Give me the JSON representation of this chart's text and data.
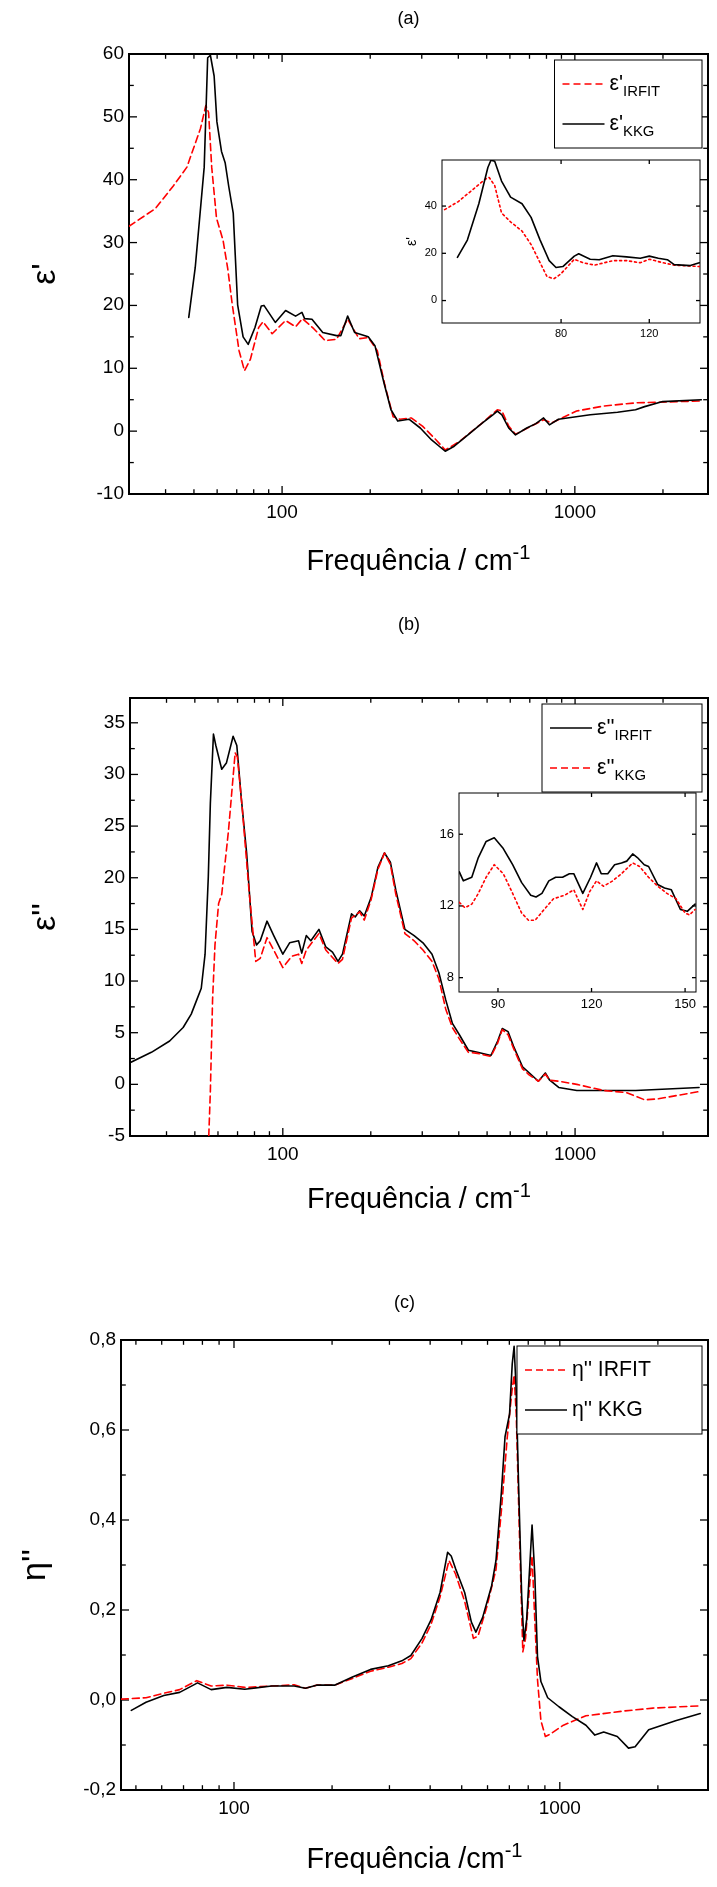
{
  "chart_data": [
    {
      "type": "line",
      "title": "(a)",
      "xlabel": "Frequência / cm$^{-1}$",
      "ylabel": "ε'",
      "log": "x",
      "legend": "top right",
      "xlim": [
        30,
        2850
      ],
      "ylim": [
        -10,
        60
      ],
      "xticks": [
        {
          "value": 30,
          "label": null
        },
        {
          "value": 40,
          "label": null
        },
        {
          "value": 50,
          "label": null
        },
        {
          "value": 60,
          "label": null
        },
        {
          "value": 70,
          "label": null
        },
        {
          "value": 80,
          "label": null
        },
        {
          "value": 90,
          "label": null
        },
        100,
        {
          "value": 200,
          "label": null
        },
        {
          "value": 300,
          "label": null
        },
        {
          "value": 400,
          "label": null
        },
        {
          "value": 500,
          "label": null
        },
        {
          "value": 600,
          "label": null
        },
        {
          "value": 700,
          "label": null
        },
        {
          "value": 800,
          "label": null
        },
        {
          "value": 900,
          "label": null
        },
        1000,
        {
          "value": 2000,
          "label": null
        }
      ],
      "yticks": [
        -10,
        {
          "value": -5,
          "label": null
        },
        0,
        {
          "value": 5,
          "label": null
        },
        10,
        {
          "value": 15,
          "label": null
        },
        20,
        {
          "value": 25,
          "label": null
        },
        30,
        {
          "value": 35,
          "label": null
        },
        40,
        {
          "value": 45,
          "label": null
        },
        50,
        {
          "value": 55,
          "label": null
        },
        60
      ],
      "series": [
        {
          "name": "ε'$_{IRFIT}$",
          "color": "#ff0000",
          "line_style": "dashed",
          "x": [
            30,
            36.9,
            42.5,
            47.3,
            52.6,
            54.9,
            56.1,
            57.5,
            59.7,
            62.9,
            65.2,
            67.6,
            71.3,
            74.4,
            77.9,
            83.2,
            86.1,
            92.5,
            102.8,
            111.2,
            117.4,
            128.3,
            140.3,
            153.4,
            167.5,
            183.2,
            196.9,
            211.5,
            224,
            239.5,
            252.6,
            276.2,
            301.7,
            336,
            360.8,
            401.9,
            480,
            543.5,
            563.5,
            594.3,
            627,
            782,
            833,
            1014,
            1256,
            1612,
            2704
          ],
          "values": [
            32.6,
            35.4,
            39,
            42,
            48.1,
            51.8,
            50.7,
            42,
            33.9,
            30.3,
            25.9,
            20.1,
            12.8,
            9.6,
            11.4,
            16.5,
            17.4,
            15.5,
            17.6,
            16.6,
            17.9,
            16.3,
            14.4,
            14.6,
            17.8,
            14.7,
            14.9,
            12.8,
            7.5,
            2.3,
            1.9,
            2.1,
            0.8,
            -1.4,
            -3.0,
            -1.7,
            1.2,
            3.4,
            3.2,
            0.8,
            -0.5,
            1.8,
            1.3,
            3.2,
            4.0,
            4.5,
            4.8
          ]
        },
        {
          "name": "ε'$_{KKG}$",
          "color": "#000000",
          "line_style": "solid",
          "x": [
            48,
            50.5,
            54.2,
            55.7,
            56.9,
            58.6,
            59.9,
            62.1,
            63.9,
            65.7,
            68.1,
            70.5,
            73.6,
            76.6,
            80.8,
            84.9,
            86.7,
            94.8,
            102.8,
            111.2,
            116.9,
            119.4,
            126.5,
            137.7,
            153.4,
            158.8,
            167.5,
            176.9,
            196.9,
            207.6,
            222.8,
            235.5,
            248.4,
            271.2,
            296.5,
            324.1,
            360.8,
            387.3,
            431.5,
            480,
            524.8,
            543.5,
            563.5,
            594.3,
            627,
            685,
            735.9,
            782,
            818.8,
            879,
            1129,
            1399,
            1612,
            1731,
            1995,
            2704
          ],
          "values": [
            18.1,
            26,
            42,
            59.4,
            59.8,
            56.5,
            49.2,
            44.5,
            42.7,
            39,
            34.7,
            20.1,
            15,
            13.8,
            16.5,
            19.9,
            20,
            17.3,
            19.2,
            18.3,
            18.9,
            17.9,
            17.8,
            15.7,
            15.2,
            15.2,
            18.3,
            15.7,
            15,
            13.6,
            7.7,
            3.4,
            1.6,
            1.9,
            0.5,
            -1.4,
            -3.2,
            -2.4,
            -0.6,
            1.2,
            2.6,
            3.2,
            2.6,
            0.5,
            -0.6,
            0.5,
            1.2,
            2.1,
            1.0,
            1.9,
            2.6,
            3.0,
            3.4,
            3.9,
            4.7,
            5.0
          ]
        }
      ]
    },
    {
      "type": "line",
      "ylabel": "ε'",
      "xlim": [
        26,
        143
      ],
      "ylim": [
        -9.5,
        59.5
      ],
      "xticks": [
        80,
        120
      ],
      "yticks": [
        0,
        20,
        40
      ],
      "series": [
        {
          "color": "#ff0000",
          "line_style": "dotted",
          "x": [
            27.2,
            33.4,
            39.6,
            45.8,
            47.4,
            49.9,
            53,
            57.1,
            62.3,
            66.4,
            70.5,
            73.6,
            76.7,
            79.8,
            86,
            90,
            95.3,
            103.5,
            109.7,
            115.9,
            120,
            126.2,
            131.3,
            142.7
          ],
          "values": [
            38.5,
            41.9,
            46.7,
            51.5,
            52.1,
            48.7,
            37.1,
            33.3,
            29.4,
            23.7,
            16,
            10.2,
            9.2,
            11.2,
            17.5,
            16,
            15,
            16.9,
            16.9,
            16,
            17.5,
            16,
            15,
            14.4
          ]
        },
        {
          "color": "#000000",
          "line_style": "solid",
          "x": [
            33,
            37.5,
            42.7,
            46.8,
            48.2,
            49.9,
            53,
            57.1,
            62.3,
            66.4,
            70.5,
            74.6,
            77.7,
            80.8,
            86,
            88,
            93.2,
            97.3,
            103.5,
            109.7,
            115.9,
            120,
            124.1,
            128.2,
            131.3,
            138.6,
            142.7
          ],
          "values": [
            18.3,
            25.6,
            41,
            56.3,
            59.4,
            59,
            50.6,
            43.8,
            41,
            35.2,
            25.6,
            16.9,
            14,
            14.4,
            18.8,
            19.8,
            17.5,
            17.3,
            19,
            18.5,
            17.9,
            18.8,
            17.9,
            17.3,
            15.2,
            14.8,
            16
          ]
        }
      ]
    },
    {
      "type": "line",
      "title": "(b)",
      "xlabel": "Frequência / cm$^{-1}$",
      "ylabel": "ε''",
      "log": "x",
      "legend": "top right",
      "xlim": [
        30,
        2850
      ],
      "ylim": [
        -5,
        37.4
      ],
      "xticks": [
        {
          "value": 30,
          "label": null
        },
        {
          "value": 40,
          "label": null
        },
        {
          "value": 50,
          "label": null
        },
        {
          "value": 60,
          "label": null
        },
        {
          "value": 70,
          "label": null
        },
        {
          "value": 80,
          "label": null
        },
        {
          "value": 90,
          "label": null
        },
        100,
        {
          "value": 200,
          "label": null
        },
        {
          "value": 300,
          "label": null
        },
        {
          "value": 400,
          "label": null
        },
        {
          "value": 500,
          "label": null
        },
        {
          "value": 600,
          "label": null
        },
        {
          "value": 700,
          "label": null
        },
        {
          "value": 800,
          "label": null
        },
        {
          "value": 900,
          "label": null
        },
        1000,
        {
          "value": 2000,
          "label": null
        }
      ],
      "yticks": [
        -5,
        {
          "value": -2.5,
          "label": null
        },
        0,
        {
          "value": 2.5,
          "label": null
        },
        5,
        {
          "value": 7.5,
          "label": null
        },
        10,
        {
          "value": 12.5,
          "label": null
        },
        15,
        {
          "value": 17.5,
          "label": null
        },
        20,
        {
          "value": 22.5,
          "label": null
        },
        25,
        {
          "value": 27.5,
          "label": null
        },
        30,
        {
          "value": 32.5,
          "label": null
        },
        35
      ],
      "series": [
        {
          "name": "ε''$_{IRFIT}$",
          "color": "#000000",
          "line_style": "solid",
          "x": [
            30,
            35.5,
            41,
            45.6,
            48.6,
            50.8,
            52.6,
            54.2,
            55.6,
            56.5,
            57.9,
            59,
            61.8,
            64.1,
            67.6,
            69.6,
            72.1,
            75.2,
            78.5,
            81.3,
            83.7,
            88.3,
            93.1,
            100,
            105.5,
            113.2,
            116.1,
            120.3,
            124.7,
            132.9,
            140.3,
            147.9,
            154.5,
            160,
            171.8,
            176.9,
            183.2,
            190,
            200.6,
            211.5,
            222.8,
            233.4,
            243.6,
            261.7,
            281.4,
            301.7,
            324,
            342,
            360.8,
            380.4,
            401.9,
            431.5,
            463.5,
            515.5,
            543.5,
            563.5,
            590,
            615.5,
            661,
            698,
            749,
            791,
            819,
            879,
            1014,
            1612,
            2656
          ],
          "values": [
            2.1,
            3.1,
            4.2,
            5.5,
            6.8,
            8.2,
            9.3,
            12.6,
            20.1,
            27.2,
            33.9,
            32.8,
            30.5,
            31.1,
            33.7,
            32.8,
            27.7,
            22.4,
            14.8,
            13.5,
            13.9,
            15.8,
            14.4,
            12.6,
            13.7,
            13.9,
            12.7,
            14.4,
            13.9,
            15,
            13.3,
            12.8,
            11.9,
            12.6,
            16.5,
            16.2,
            16.8,
            16.3,
            18.1,
            21.0,
            22.4,
            21.5,
            18.8,
            15.0,
            14.4,
            13.7,
            12.6,
            10.8,
            8.2,
            5.9,
            4.8,
            3.3,
            3.1,
            2.8,
            4.2,
            5.4,
            5.1,
            3.7,
            1.7,
            1.1,
            0.3,
            1.1,
            0.4,
            -0.3,
            -0.6,
            -0.6,
            -0.3
          ]
        },
        {
          "name": "ε''$_{KKG}$",
          "color": "#ff0000",
          "line_style": "dashed",
          "x": [
            55.8,
            56.5,
            57.5,
            58.6,
            60.3,
            61.8,
            65.2,
            68.7,
            69.9,
            72.6,
            76.6,
            80.8,
            83.7,
            88.3,
            93.1,
            100,
            107.4,
            113.2,
            116.1,
            120.3,
            132.9,
            140.3,
            154.5,
            160,
            171.8,
            183.2,
            190,
            200.6,
            211.5,
            222.8,
            233.4,
            243.6,
            261.7,
            281.4,
            301.7,
            324,
            342,
            360.8,
            380.4,
            401.9,
            431.5,
            463.5,
            515.5,
            543.5,
            563.5,
            590,
            615.5,
            661,
            698,
            749,
            791,
            819,
            879,
            1014,
            1256,
            1500,
            1731,
            1928,
            2656
          ],
          "values": [
            -5,
            -0.7,
            8.2,
            13.5,
            17.5,
            18.4,
            24.6,
            32.1,
            31.7,
            26.8,
            18.8,
            11.9,
            12.2,
            14.2,
            13.0,
            11.3,
            12.4,
            12.6,
            11.7,
            13.0,
            14.6,
            13.0,
            11.7,
            12.1,
            16.1,
            16.7,
            15.9,
            17.9,
            20.8,
            22.4,
            21.3,
            18.4,
            14.6,
            13.9,
            13.0,
            11.9,
            10.2,
            7.3,
            5.5,
            4.4,
            3.1,
            3.0,
            2.7,
            4.0,
            5.3,
            4.8,
            3.5,
            1.5,
            0.9,
            0.3,
            1.0,
            0.4,
            0.3,
            0.0,
            -0.6,
            -0.8,
            -1.5,
            -1.4,
            -0.7
          ]
        }
      ]
    },
    {
      "type": "line",
      "xlim": [
        77.5,
        153.5
      ],
      "ylim": [
        7.2,
        18.3
      ],
      "xticks": [
        90,
        120,
        150
      ],
      "yticks": [
        8,
        12,
        16
      ],
      "series": [
        {
          "color": "#000000",
          "line_style": "solid",
          "x": [
            77.6,
            78.9,
            81.6,
            83.7,
            86.2,
            88.8,
            91.7,
            94.7,
            97.6,
            100.5,
            102.2,
            104.1,
            106.3,
            108.5,
            110.7,
            112.9,
            114.3,
            117.2,
            119.7,
            121.6,
            123.1,
            125.2,
            127.4,
            129.6,
            131.3,
            133.2,
            134.7,
            136.9,
            138.3,
            141.2,
            143.4,
            145.6,
            148.5,
            150.7,
            153.2
          ],
          "values": [
            13.9,
            13.4,
            13.6,
            14.7,
            15.6,
            15.8,
            15.2,
            14.3,
            13.3,
            12.6,
            12.5,
            12.7,
            13.4,
            13.6,
            13.6,
            13.8,
            13.8,
            12.7,
            13.6,
            14.4,
            13.8,
            13.8,
            14.3,
            14.4,
            14.5,
            14.9,
            14.7,
            14.3,
            14.2,
            13.2,
            13.0,
            12.9,
            11.8,
            11.7,
            12.1
          ]
        },
        {
          "color": "#ff0000",
          "line_style": "dotted",
          "x": [
            77.6,
            79.4,
            81.6,
            83.7,
            86.2,
            88.8,
            91.7,
            94.7,
            97.6,
            99.8,
            101.9,
            104.8,
            107.8,
            111.4,
            114.3,
            117.2,
            119.4,
            121.6,
            123.8,
            126.8,
            129.6,
            133.2,
            135.4,
            138.3,
            141.2,
            144.2,
            147.1,
            150,
            151.4,
            153.2
          ],
          "values": [
            12.2,
            11.9,
            12.1,
            12.7,
            13.6,
            14.3,
            13.8,
            12.7,
            11.6,
            11.2,
            11.2,
            11.8,
            12.4,
            12.6,
            12.9,
            11.8,
            12.8,
            13.4,
            13.1,
            13.4,
            13.8,
            14.4,
            14.2,
            13.6,
            13.1,
            12.7,
            12.4,
            11.6,
            11.5,
            11.8
          ]
        }
      ]
    },
    {
      "type": "line",
      "title": "(c)",
      "xlabel": "Frequência /cm$^{-1}$",
      "ylabel": "η''",
      "log": "x",
      "legend": "top right",
      "xlim": [
        45,
        2850
      ],
      "ylim": [
        -0.2,
        0.8
      ],
      "xticks": [
        {
          "value": 50,
          "label": null
        },
        {
          "value": 60,
          "label": null
        },
        {
          "value": 70,
          "label": null
        },
        {
          "value": 80,
          "label": null
        },
        {
          "value": 90,
          "label": null
        },
        100,
        {
          "value": 200,
          "label": null
        },
        {
          "value": 300,
          "label": null
        },
        {
          "value": 400,
          "label": null
        },
        {
          "value": 500,
          "label": null
        },
        {
          "value": 600,
          "label": null
        },
        {
          "value": 700,
          "label": null
        },
        {
          "value": 800,
          "label": null
        },
        {
          "value": 900,
          "label": null
        },
        1000,
        {
          "value": 2000,
          "label": null
        }
      ],
      "yticks": [
        {
          "value": -0.2,
          "label": "-0,2"
        },
        {
          "value": -0.1,
          "label": null
        },
        {
          "value": 0,
          "label": "0,0"
        },
        {
          "value": 0.1,
          "label": null
        },
        {
          "value": 0.2,
          "label": "0,2"
        },
        {
          "value": 0.3,
          "label": null
        },
        {
          "value": 0.4,
          "label": "0,4"
        },
        {
          "value": 0.5,
          "label": null
        },
        {
          "value": 0.6,
          "label": "0,6"
        },
        {
          "value": 0.7,
          "label": null
        },
        {
          "value": 0.8,
          "label": "0,8"
        }
      ],
      "series": [
        {
          "name": "η''  IRFIT",
          "color": "#ff0000",
          "line_style": "dashed",
          "x": [
            45.1,
            53.7,
            60.9,
            68.1,
            76.9,
            85.1,
            95.1,
            107.9,
            130.5,
            153,
            165.7,
            179.2,
            203.5,
            231,
            262.5,
            297.7,
            327.5,
            349,
            377.8,
            402.5,
            429,
            457,
            478.6,
            510.5,
            543,
            561,
            598,
            637,
            662,
            690,
            713,
            724,
            735,
            751,
            770,
            785,
            809,
            822,
            838,
            854,
            875,
            903,
            933,
            1026,
            1203,
            1549,
            1932,
            2698
          ],
          "values": [
            0.002,
            0.005,
            0.015,
            0.023,
            0.043,
            0.031,
            0.033,
            0.028,
            0.031,
            0.034,
            0.026,
            0.033,
            0.033,
            0.048,
            0.064,
            0.073,
            0.081,
            0.092,
            0.127,
            0.168,
            0.229,
            0.31,
            0.28,
            0.219,
            0.137,
            0.142,
            0.209,
            0.29,
            0.422,
            0.585,
            0.686,
            0.722,
            0.635,
            0.381,
            0.107,
            0.137,
            0.259,
            0.32,
            0.178,
            0.046,
            -0.046,
            -0.081,
            -0.076,
            -0.056,
            -0.035,
            -0.025,
            -0.018,
            -0.013
          ]
        },
        {
          "name": "η'' KKG",
          "color": "#000000",
          "line_style": "solid",
          "x": [
            48.4,
            53.7,
            60.9,
            68.1,
            77.3,
            85.1,
            95.1,
            107.9,
            130.5,
            153,
            165.7,
            179.2,
            203.5,
            231,
            262.5,
            297.7,
            327.5,
            349,
            377.8,
            402.5,
            429,
            452.5,
            464.2,
            478.6,
            510.5,
            535.3,
            552.6,
            579.4,
            617.7,
            637,
            662,
            679,
            701,
            714.5,
            724,
            735,
            747,
            764,
            776,
            791,
            809,
            822,
            838,
            854,
            875,
            918,
            994,
            1093,
            1203,
            1281,
            1364,
            1501,
            1625,
            1703,
            1874,
            2266,
            2698
          ],
          "values": [
            -0.023,
            -0.005,
            0.01,
            0.017,
            0.038,
            0.023,
            0.028,
            0.024,
            0.031,
            0.031,
            0.026,
            0.033,
            0.033,
            0.051,
            0.068,
            0.076,
            0.087,
            0.099,
            0.137,
            0.178,
            0.239,
            0.328,
            0.32,
            0.292,
            0.239,
            0.173,
            0.151,
            0.183,
            0.254,
            0.31,
            0.463,
            0.585,
            0.635,
            0.747,
            0.786,
            0.686,
            0.483,
            0.229,
            0.132,
            0.178,
            0.3,
            0.389,
            0.279,
            0.097,
            0.041,
            0.005,
            -0.015,
            -0.037,
            -0.056,
            -0.078,
            -0.071,
            -0.081,
            -0.107,
            -0.104,
            -0.066,
            -0.046,
            -0.03
          ]
        }
      ]
    }
  ]
}
